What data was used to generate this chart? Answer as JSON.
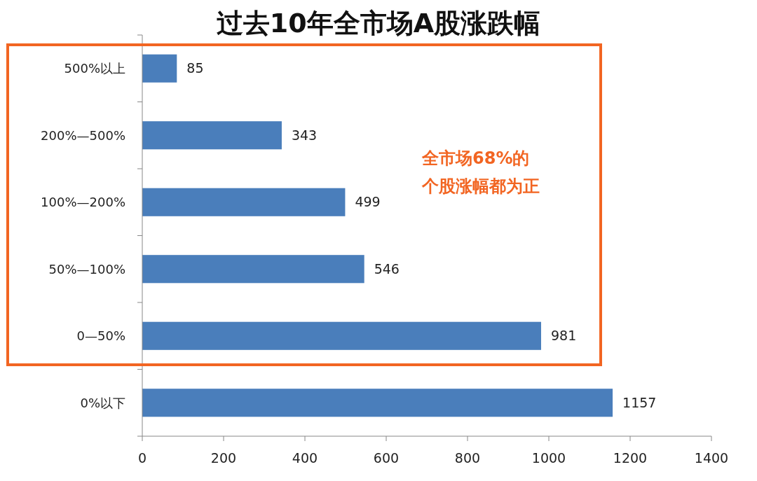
{
  "chart_data": {
    "type": "bar",
    "orientation": "horizontal",
    "title": "过去10年全市场A股涨跌幅",
    "categories": [
      "500%以上",
      "200%—500%",
      "100%—200%",
      "50%—100%",
      "0—50%",
      "0%以下"
    ],
    "values": [
      85,
      343,
      499,
      546,
      981,
      1157
    ],
    "color": "#4a7ebb",
    "xlim": [
      0,
      1400
    ],
    "xticks": [
      0,
      200,
      400,
      600,
      800,
      1000,
      1200,
      1400
    ],
    "grid": false,
    "data_labels": true,
    "annotations": [
      "全市场68%的",
      "个股涨幅都为正"
    ]
  }
}
